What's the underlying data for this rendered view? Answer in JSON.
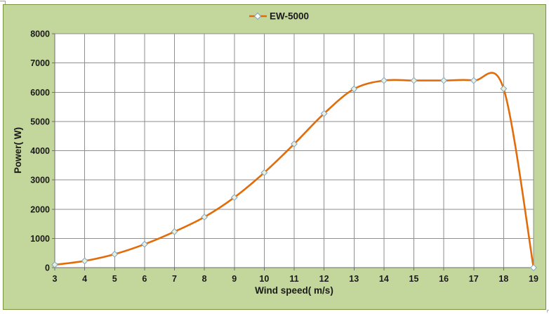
{
  "chart_data": {
    "type": "line",
    "smooth": true,
    "marker": "diamond",
    "xlabel": "Wind speed( m/s)",
    "ylabel": "Power( W)",
    "xlim": [
      3,
      19
    ],
    "ylim": [
      0,
      8000
    ],
    "x_tick_step": 1,
    "y_tick_step": 1000,
    "grid": true,
    "legend_position": "top-center",
    "series": [
      {
        "name": "EW-5000",
        "x": [
          3,
          4,
          5,
          6,
          7,
          8,
          9,
          10,
          11,
          12,
          13,
          14,
          15,
          16,
          17,
          18,
          19
        ],
        "values": [
          100,
          230,
          460,
          800,
          1230,
          1730,
          2400,
          3250,
          4230,
          5270,
          6110,
          6400,
          6400,
          6400,
          6400,
          6120,
          0
        ]
      }
    ]
  },
  "colors": {
    "chart_bg": "#c3d69b",
    "chart_border": "#77933c",
    "plot_bg": "#ffffff",
    "gridline": "#8e8e8e",
    "axis": "#6e6e6e",
    "series": "#e36c0a",
    "marker_fill": "#e9efd8",
    "marker_fill_last": "#ffffff",
    "marker_stroke": "#7da4c5",
    "text": "#1a1a1a"
  }
}
